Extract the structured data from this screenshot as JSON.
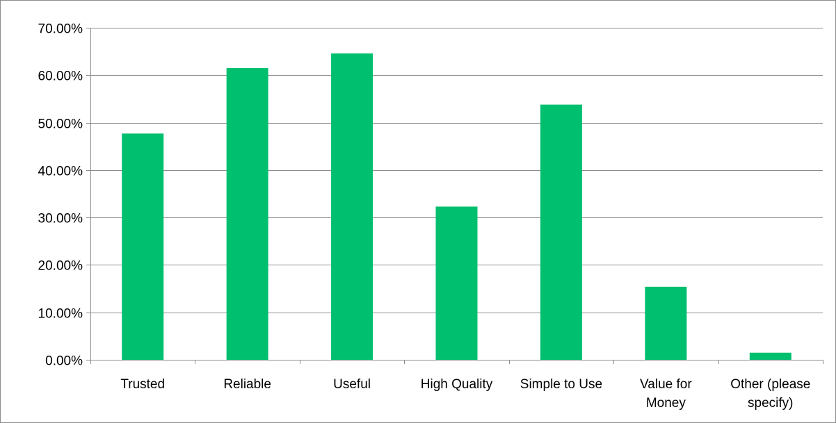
{
  "chart_data": {
    "type": "bar",
    "categories": [
      [
        "Trusted"
      ],
      [
        "Reliable"
      ],
      [
        "Useful"
      ],
      [
        "High Quality"
      ],
      [
        "Simple to Use"
      ],
      [
        "Value for",
        "Money"
      ],
      [
        "Other (please",
        "specify)"
      ]
    ],
    "values": [
      47.7,
      61.5,
      64.6,
      32.3,
      53.8,
      15.4,
      1.5
    ],
    "ylim": [
      0,
      70
    ],
    "yticks": [
      0,
      10,
      20,
      30,
      40,
      50,
      60,
      70
    ],
    "ytick_labels": [
      "0.00%",
      "10.00%",
      "20.00%",
      "30.00%",
      "40.00%",
      "50.00%",
      "60.00%",
      "70.00%"
    ],
    "grid": true,
    "legend": "none",
    "title": "",
    "xlabel": "",
    "ylabel": "",
    "bar_color": "#00BF6F",
    "grid_color": "#8c8c8c"
  }
}
